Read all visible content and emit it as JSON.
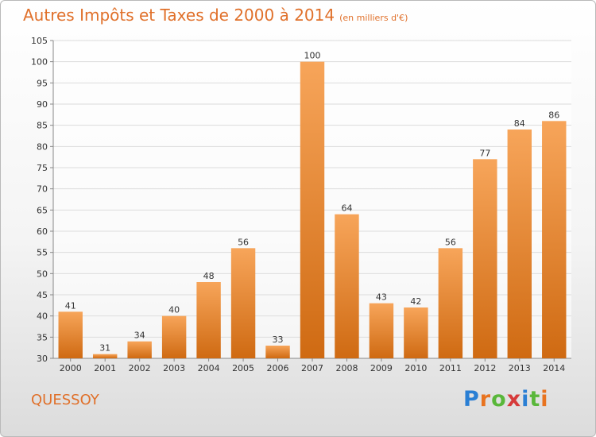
{
  "title": "Autres Impôts et Taxes de 2000 à 2014",
  "subtitle": "(en milliers d'€)",
  "town": "QUESSOY",
  "logo": {
    "text": "Proxiti",
    "letters": [
      "P",
      "r",
      "o",
      "x",
      "i",
      "t",
      "i"
    ],
    "colors": [
      "#2a7fd4",
      "#e8731f",
      "#59b73a",
      "#d63a3a",
      "#2a7fd4",
      "#59b73a",
      "#e8731f"
    ]
  },
  "colors": {
    "bar_top": "#f7a55a",
    "bar_bottom": "#cf6a12",
    "accent": "#e0702a"
  },
  "chart_data": {
    "type": "bar",
    "title": "Autres Impôts et Taxes de 2000 à 2014",
    "subtitle": "(en milliers d'€)",
    "xlabel": "",
    "ylabel": "",
    "categories": [
      "2000",
      "2001",
      "2002",
      "2003",
      "2004",
      "2005",
      "2006",
      "2007",
      "2008",
      "2009",
      "2010",
      "2011",
      "2012",
      "2013",
      "2014"
    ],
    "values": [
      41,
      31,
      34,
      40,
      48,
      56,
      33,
      100,
      64,
      43,
      42,
      56,
      77,
      84,
      86
    ],
    "ylim": [
      30,
      105
    ],
    "yticks": [
      30,
      35,
      40,
      45,
      50,
      55,
      60,
      65,
      70,
      75,
      80,
      85,
      90,
      95,
      100,
      105
    ],
    "grid": true,
    "legend": "none"
  }
}
